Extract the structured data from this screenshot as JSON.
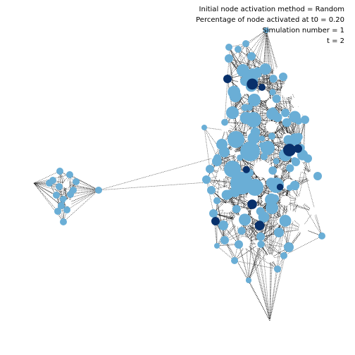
{
  "annotations": {
    "method": "Initial node activation method = Random",
    "percentage": "Percentage of node activated at t0 = 0.20",
    "simulation": "Simulation number = 1",
    "time": "t = 2"
  },
  "colors": {
    "background": "#ffffff",
    "edge": "#000000",
    "state_0_inactive": "#ffffff",
    "state_1_active": "#6aaed6",
    "state_2_new": "#08306b"
  }
}
